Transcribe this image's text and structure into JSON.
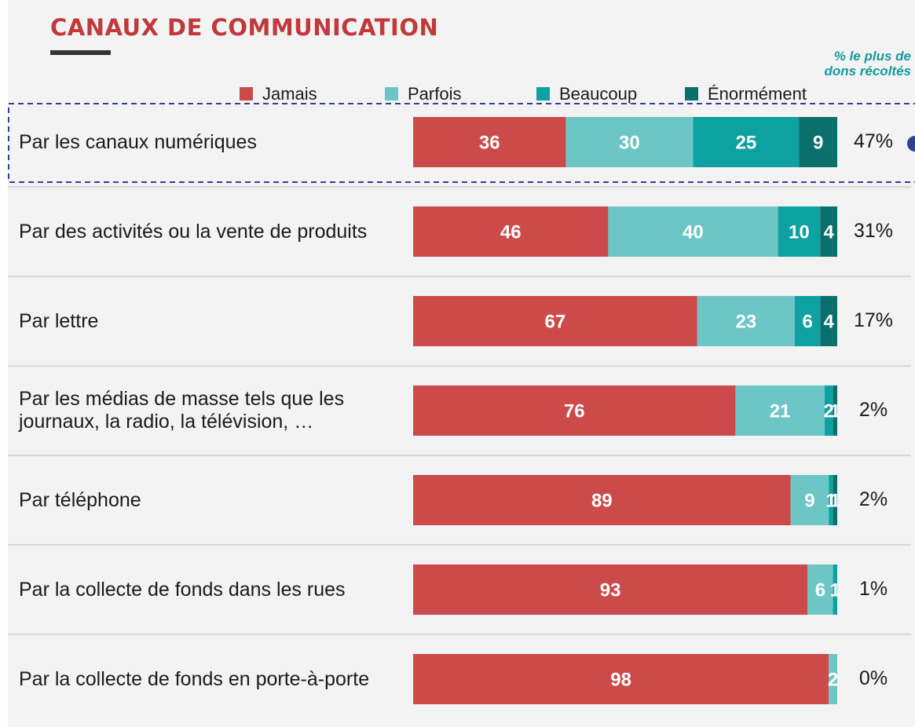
{
  "chart_data": {
    "type": "stacked-barh",
    "title": "CANAUX DE COMMUNICATION",
    "categories": [
      "Par les canaux numériques",
      "Par des activités ou la vente de produits",
      "Par lettre",
      "Par les médias de masse tels que les journaux, la radio, la télévision, …",
      "Par téléphone",
      "Par la collecte de fonds dans les rues",
      "Par la collecte de fonds en porte-à-porte"
    ],
    "series": [
      {
        "name": "Jamais",
        "color": "#cd4a4b",
        "values": [
          36,
          46,
          67,
          76,
          89,
          93,
          98
        ]
      },
      {
        "name": "Parfois",
        "color": "#6cc6c6",
        "values": [
          30,
          40,
          23,
          21,
          9,
          6,
          2
        ]
      },
      {
        "name": "Beaucoup",
        "color": "#0ea1a1",
        "values": [
          25,
          10,
          6,
          2,
          1,
          1,
          0
        ]
      },
      {
        "name": "Énormément",
        "color": "#0b6f6c",
        "values": [
          9,
          4,
          4,
          1,
          1,
          0,
          0
        ]
      }
    ],
    "xlim": [
      0,
      100
    ],
    "share": {
      "title": "% le plus de dons récoltés",
      "values": [
        47,
        31,
        17,
        2,
        2,
        1,
        0
      ],
      "value_labels": [
        "47%",
        "31%",
        "17%",
        "2%",
        "2%",
        "1%",
        "0%"
      ]
    }
  }
}
